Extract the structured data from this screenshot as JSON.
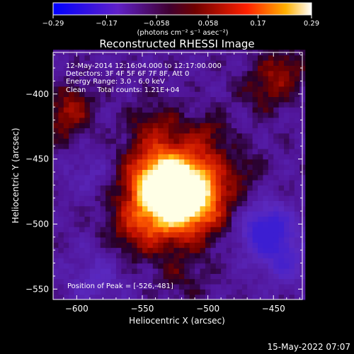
{
  "chart_data": {
    "type": "heatmap",
    "title": "Reconstructed RHESSI Image",
    "colorbar": {
      "min": -0.29,
      "max": 0.29,
      "ticks": [
        "-0.29",
        "-0.17",
        "-0.058",
        "0.058",
        "0.17",
        "0.29"
      ],
      "unit_label": "(photons cm⁻² s⁻¹ asec⁻²)",
      "colormap": "blue-purple-red-yellow-white"
    },
    "xlabel": "Heliocentric X (arcsec)",
    "ylabel": "Heliocentric Y (arcsec)",
    "xlim": [
      -618,
      -428
    ],
    "ylim": [
      -558,
      -368
    ],
    "xticks": [
      -600,
      -550,
      -500,
      -450
    ],
    "yticks": [
      -400,
      -450,
      -500,
      -550
    ],
    "annotations": [
      "12-May-2014 12:16:04.000 to 12:17:00.000",
      "Detectors: 3F 4F 5F 6F 7F 8F, Att 0",
      "Energy Range: 3.0 - 6.0 keV",
      "Clean     Total counts: 1.21E+04"
    ],
    "peak_label": "Position of Peak = [-526,-481]",
    "peak": {
      "x": -526,
      "y": -481
    },
    "blobs": [
      {
        "x": -522,
        "y": -480,
        "amp": 0.36,
        "sigma": 22
      },
      {
        "x": -540,
        "y": -465,
        "amp": 0.2,
        "sigma": 18
      },
      {
        "x": -510,
        "y": -470,
        "amp": 0.14,
        "sigma": 20
      },
      {
        "x": -555,
        "y": -505,
        "amp": 0.12,
        "sigma": 16
      },
      {
        "x": -540,
        "y": -425,
        "amp": 0.1,
        "sigma": 14
      },
      {
        "x": -500,
        "y": -430,
        "amp": 0.08,
        "sigma": 12
      },
      {
        "x": -610,
        "y": -420,
        "amp": 0.12,
        "sigma": 12
      },
      {
        "x": -600,
        "y": -405,
        "amp": 0.09,
        "sigma": 10
      },
      {
        "x": -455,
        "y": -395,
        "amp": 0.11,
        "sigma": 14
      },
      {
        "x": -440,
        "y": -378,
        "amp": 0.1,
        "sigma": 10
      },
      {
        "x": -470,
        "y": -455,
        "amp": 0.05,
        "sigma": 10
      },
      {
        "x": -520,
        "y": -540,
        "amp": 0.06,
        "sigma": 14
      },
      {
        "x": -590,
        "y": -460,
        "amp": -0.06,
        "sigma": 12
      },
      {
        "x": -455,
        "y": -505,
        "amp": -0.25,
        "sigma": 14
      },
      {
        "x": -440,
        "y": -530,
        "amp": -0.12,
        "sigma": 12
      },
      {
        "x": -585,
        "y": -540,
        "amp": -0.08,
        "sigma": 16
      }
    ]
  },
  "footer_timestamp": "15-May-2022 07:07"
}
